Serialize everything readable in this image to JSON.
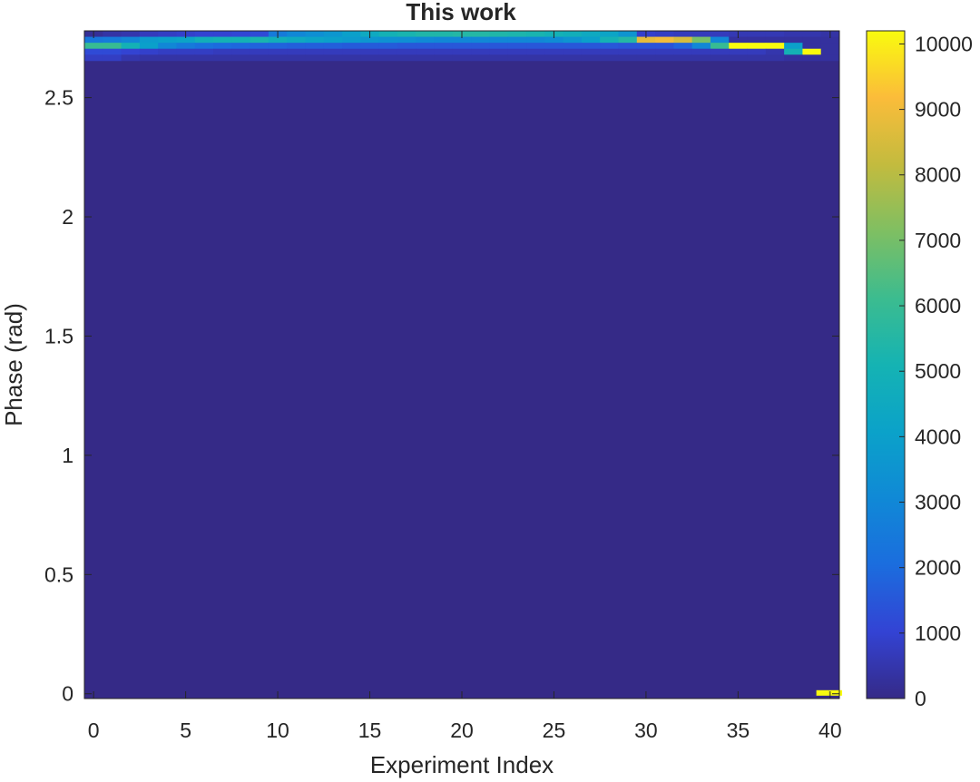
{
  "chart_data": {
    "type": "heatmap",
    "title": "This work",
    "xlabel": "Experiment Index",
    "ylabel": "Phase (rad)",
    "xlim": [
      -0.5,
      40.5
    ],
    "ylim": [
      -0.02,
      2.78
    ],
    "x_ticks": [
      0,
      5,
      10,
      15,
      20,
      25,
      30,
      35,
      40
    ],
    "y_ticks": [
      0,
      0.5,
      1,
      1.5,
      2,
      2.5
    ],
    "colorbar": {
      "range": [
        0,
        10200
      ],
      "ticks": [
        0,
        1000,
        2000,
        3000,
        4000,
        5000,
        6000,
        7000,
        8000,
        9000,
        10000
      ],
      "colormap": "parula"
    },
    "background_value": 0,
    "bin_height_rad": 0.025,
    "rows": [
      {
        "y": 2.7675,
        "values": [
          200,
          400,
          500,
          700,
          800,
          900,
          1000,
          1000,
          1100,
          1200,
          2500,
          3000,
          3300,
          3600,
          4000,
          4500,
          5000,
          5200,
          5400,
          5400,
          5500,
          5500,
          5400,
          5300,
          5200,
          5000,
          4800,
          4500,
          4200,
          3500,
          900,
          800,
          700,
          700,
          700,
          600,
          600,
          600,
          500,
          500,
          400
        ]
      },
      {
        "y": 2.7425,
        "values": [
          2400,
          2600,
          3000,
          3800,
          4000,
          4200,
          4800,
          5000,
          5000,
          5200,
          4800,
          4500,
          4200,
          4000,
          3800,
          3600,
          3400,
          3300,
          3100,
          3000,
          3000,
          3000,
          3000,
          3000,
          3000,
          3200,
          3500,
          4000,
          5000,
          5500,
          8800,
          9000,
          8500,
          7000,
          3000,
          300,
          300,
          300,
          300,
          300,
          300
        ]
      },
      {
        "y": 2.7175,
        "values": [
          6000,
          6000,
          5000,
          4000,
          3000,
          2500,
          2200,
          2000,
          1900,
          1800,
          1800,
          1700,
          1700,
          1700,
          1600,
          1600,
          1600,
          1500,
          1500,
          1500,
          1500,
          1500,
          1500,
          1500,
          1500,
          1500,
          1500,
          1500,
          1500,
          1400,
          1400,
          1400,
          1800,
          3000,
          6000,
          10200,
          10200,
          10200,
          4000,
          300,
          300
        ]
      },
      {
        "y": 2.6925,
        "values": [
          1200,
          1200,
          1000,
          900,
          800,
          800,
          800,
          700,
          700,
          700,
          700,
          700,
          700,
          700,
          700,
          700,
          700,
          700,
          700,
          700,
          700,
          700,
          700,
          700,
          700,
          700,
          700,
          700,
          700,
          700,
          700,
          700,
          700,
          700,
          700,
          700,
          700,
          500,
          5000,
          10200,
          300
        ]
      },
      {
        "y": 2.6675,
        "values": [
          800,
          800,
          500,
          400,
          400,
          400,
          400,
          400,
          400,
          400,
          400,
          400,
          400,
          400,
          400,
          400,
          400,
          400,
          400,
          400,
          400,
          400,
          400,
          400,
          400,
          400,
          400,
          400,
          400,
          400,
          400,
          400,
          400,
          400,
          400,
          400,
          400,
          400,
          300,
          300,
          300
        ]
      }
    ],
    "extra_cells": [
      {
        "x": 39.6,
        "y": 0.0,
        "value": 10200
      },
      {
        "x": 40.3,
        "y": 0.0,
        "value": 10200
      }
    ]
  }
}
